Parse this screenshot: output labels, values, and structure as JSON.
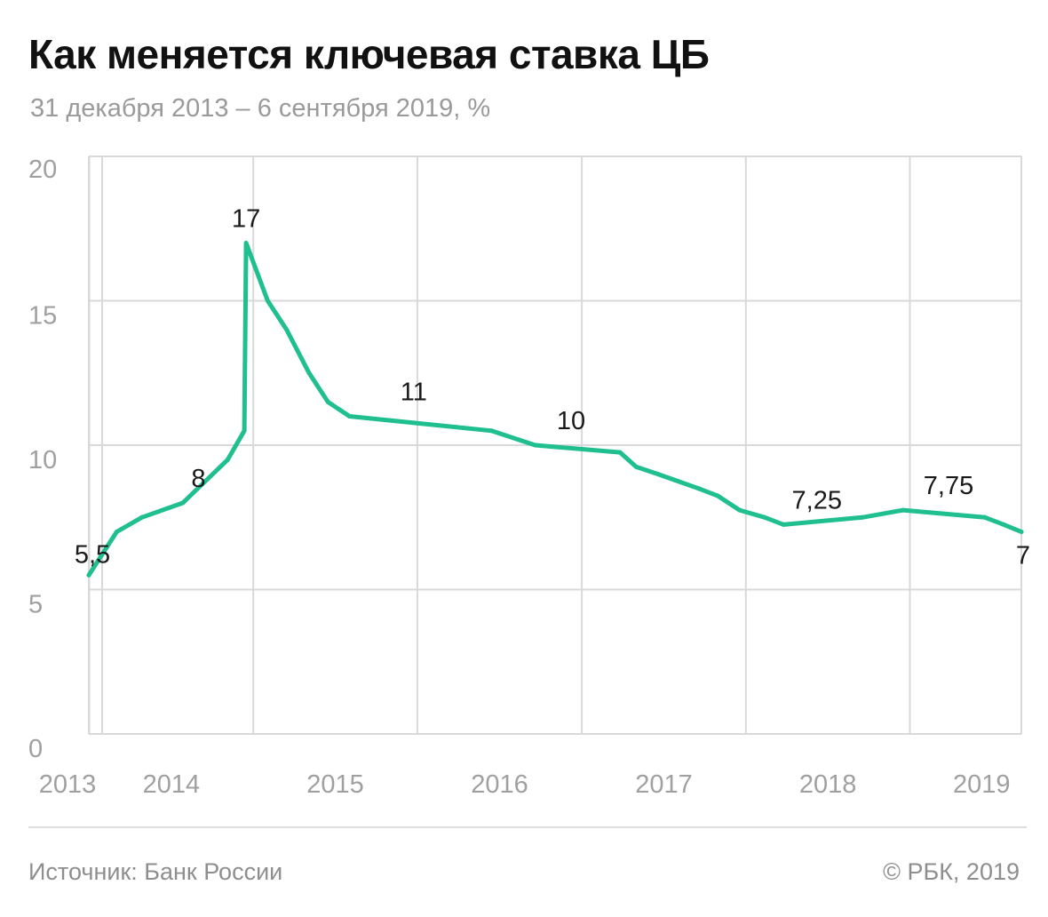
{
  "header": {
    "title": "Как меняется ключевая ставка ЦБ",
    "subtitle": "31 декабря 2013 – 6 сентября 2019, %"
  },
  "footer": {
    "source": "Источник: Банк России",
    "copyright": "© РБК, 2019"
  },
  "colors": {
    "line": "#1fbf8f",
    "grid": "#d9d9d9",
    "axis_text": "#a0a0a0",
    "label_text": "#1a1a1a"
  },
  "chart_data": {
    "type": "line",
    "title": "Как меняется ключевая ставка ЦБ",
    "subtitle": "31 декабря 2013 – 6 сентября 2019, %",
    "ylim": [
      0,
      20
    ],
    "yticks": [
      0,
      5,
      10,
      15,
      20
    ],
    "xlim": [
      "2013-12-31",
      "2019-09-06"
    ],
    "xticks": [
      "2013",
      "2014",
      "2015",
      "2016",
      "2017",
      "2018",
      "2019"
    ],
    "grid": true,
    "series": [
      {
        "points": [
          {
            "x": "2013-12-31",
            "y": 5.5
          },
          {
            "x": "2014-03-03",
            "y": 7.0
          },
          {
            "x": "2014-04-28",
            "y": 7.5
          },
          {
            "x": "2014-07-28",
            "y": 8.0
          },
          {
            "x": "2014-11-05",
            "y": 9.5
          },
          {
            "x": "2014-12-12",
            "y": 10.5
          },
          {
            "x": "2014-12-16",
            "y": 17.0
          },
          {
            "x": "2015-02-02",
            "y": 15.0
          },
          {
            "x": "2015-03-16",
            "y": 14.0
          },
          {
            "x": "2015-05-05",
            "y": 12.5
          },
          {
            "x": "2015-06-16",
            "y": 11.5
          },
          {
            "x": "2015-08-03",
            "y": 11.0
          },
          {
            "x": "2016-06-14",
            "y": 10.5
          },
          {
            "x": "2016-09-19",
            "y": 10.0
          },
          {
            "x": "2017-03-27",
            "y": 9.75
          },
          {
            "x": "2017-05-02",
            "y": 9.25
          },
          {
            "x": "2017-06-19",
            "y": 9.0
          },
          {
            "x": "2017-09-18",
            "y": 8.5
          },
          {
            "x": "2017-10-30",
            "y": 8.25
          },
          {
            "x": "2017-12-18",
            "y": 7.75
          },
          {
            "x": "2018-02-12",
            "y": 7.5
          },
          {
            "x": "2018-03-26",
            "y": 7.25
          },
          {
            "x": "2018-09-17",
            "y": 7.5
          },
          {
            "x": "2018-12-17",
            "y": 7.75
          },
          {
            "x": "2019-06-17",
            "y": 7.5
          },
          {
            "x": "2019-07-29",
            "y": 7.25
          },
          {
            "x": "2019-09-06",
            "y": 7.0
          }
        ]
      }
    ],
    "annotations": [
      {
        "text": "5,5",
        "x": "2013-12-31",
        "y": 5.5
      },
      {
        "text": "8",
        "x": "2014-09-01",
        "y": 8.0
      },
      {
        "text": "17",
        "x": "2014-12-16",
        "y": 17.0
      },
      {
        "text": "11",
        "x": "2015-12-24",
        "y": 11.0
      },
      {
        "text": "10",
        "x": "2016-12-08",
        "y": 10.0
      },
      {
        "text": "7,25",
        "x": "2018-06-08",
        "y": 7.25
      },
      {
        "text": "7,75",
        "x": "2019-03-28",
        "y": 7.75
      },
      {
        "text": "7",
        "x": "2019-09-06",
        "y": 7.0
      }
    ]
  }
}
